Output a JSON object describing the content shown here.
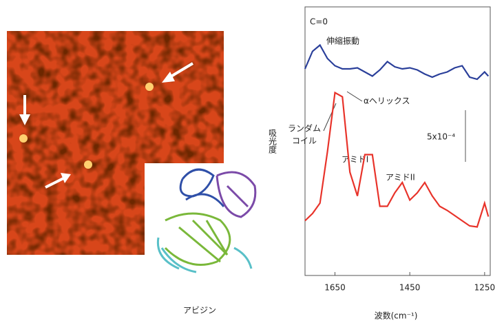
{
  "chart_data": {
    "type": "line",
    "caption": "アビジン",
    "xlabel": "波数(cm⁻¹)",
    "ylabel": "吸光度",
    "xlim": [
      1730,
      1235
    ],
    "xticks": [
      1650,
      1450,
      1250
    ],
    "ylim": [
      0,
      0.0026
    ],
    "x": [
      1730,
      1710,
      1690,
      1670,
      1650,
      1630,
      1610,
      1590,
      1570,
      1550,
      1530,
      1510,
      1490,
      1470,
      1450,
      1430,
      1410,
      1390,
      1370,
      1350,
      1330,
      1310,
      1290,
      1270,
      1250,
      1240
    ],
    "series": [
      {
        "color": "#2a3f9a",
        "values": [
          0.002,
          0.00217,
          0.00223,
          0.0021,
          0.00203,
          0.002,
          0.002,
          0.00201,
          0.00197,
          0.00193,
          0.00199,
          0.00207,
          0.00202,
          0.002,
          0.00201,
          0.00199,
          0.00195,
          0.00192,
          0.00195,
          0.00197,
          0.00201,
          0.00203,
          0.00192,
          0.0019,
          0.00197,
          0.00193
        ]
      },
      {
        "color": "#e8332a",
        "values": [
          0.00053,
          0.0006,
          0.0007,
          0.0012,
          0.00177,
          0.00173,
          0.001,
          0.00077,
          0.00117,
          0.00117,
          0.00067,
          0.00067,
          0.0008,
          0.0009,
          0.00073,
          0.0008,
          0.0009,
          0.00077,
          0.00067,
          0.00063,
          0.00058,
          0.00053,
          0.00048,
          0.00047,
          0.0007,
          0.00057
        ]
      }
    ],
    "scale_bar": {
      "value": 0.0005,
      "label": "5x10⁻⁴"
    },
    "annotations": {
      "co": "C=0",
      "stretch": "伸縮振動",
      "helix": "αヘリックス",
      "coil": [
        "ランダム",
        "コイル"
      ],
      "amide1": "アミドI",
      "amide2": "アミドII"
    }
  }
}
